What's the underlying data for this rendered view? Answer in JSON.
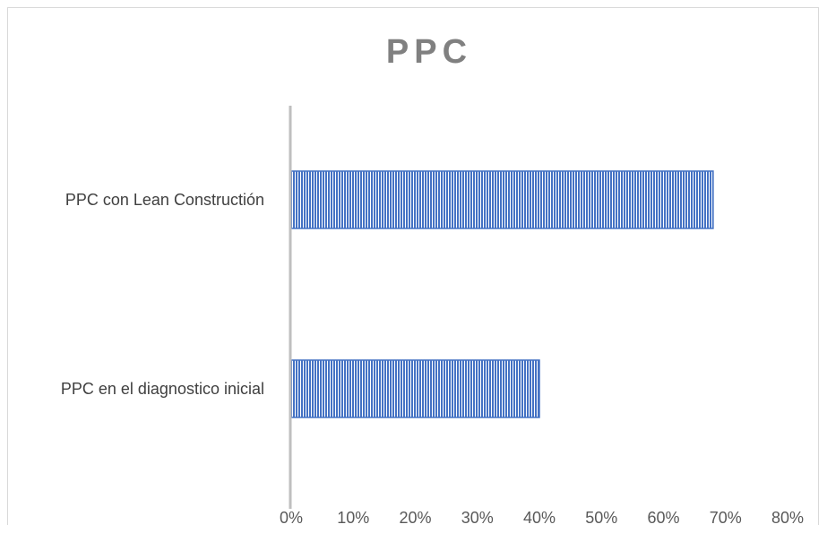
{
  "chart_data": {
    "type": "bar",
    "orientation": "horizontal",
    "title": "PPC",
    "categories": [
      "PPC con Lean Constructión",
      "PPC en el diagnostico inicial"
    ],
    "values": [
      0.68,
      0.4
    ],
    "xlim": [
      0,
      0.8
    ],
    "xticks": [
      0,
      0.1,
      0.2,
      0.3,
      0.4,
      0.5,
      0.6,
      0.7,
      0.8
    ],
    "xtick_labels": [
      "0%",
      "10%",
      "20%",
      "30%",
      "40%",
      "50%",
      "60%",
      "70%",
      "80%"
    ],
    "xlabel": "",
    "ylabel": "",
    "grid": false,
    "legend": false,
    "colors": {
      "bar_fill": "#4472c4",
      "bar_stripe": "#ffffff",
      "axis": "#bfbfbf"
    }
  }
}
